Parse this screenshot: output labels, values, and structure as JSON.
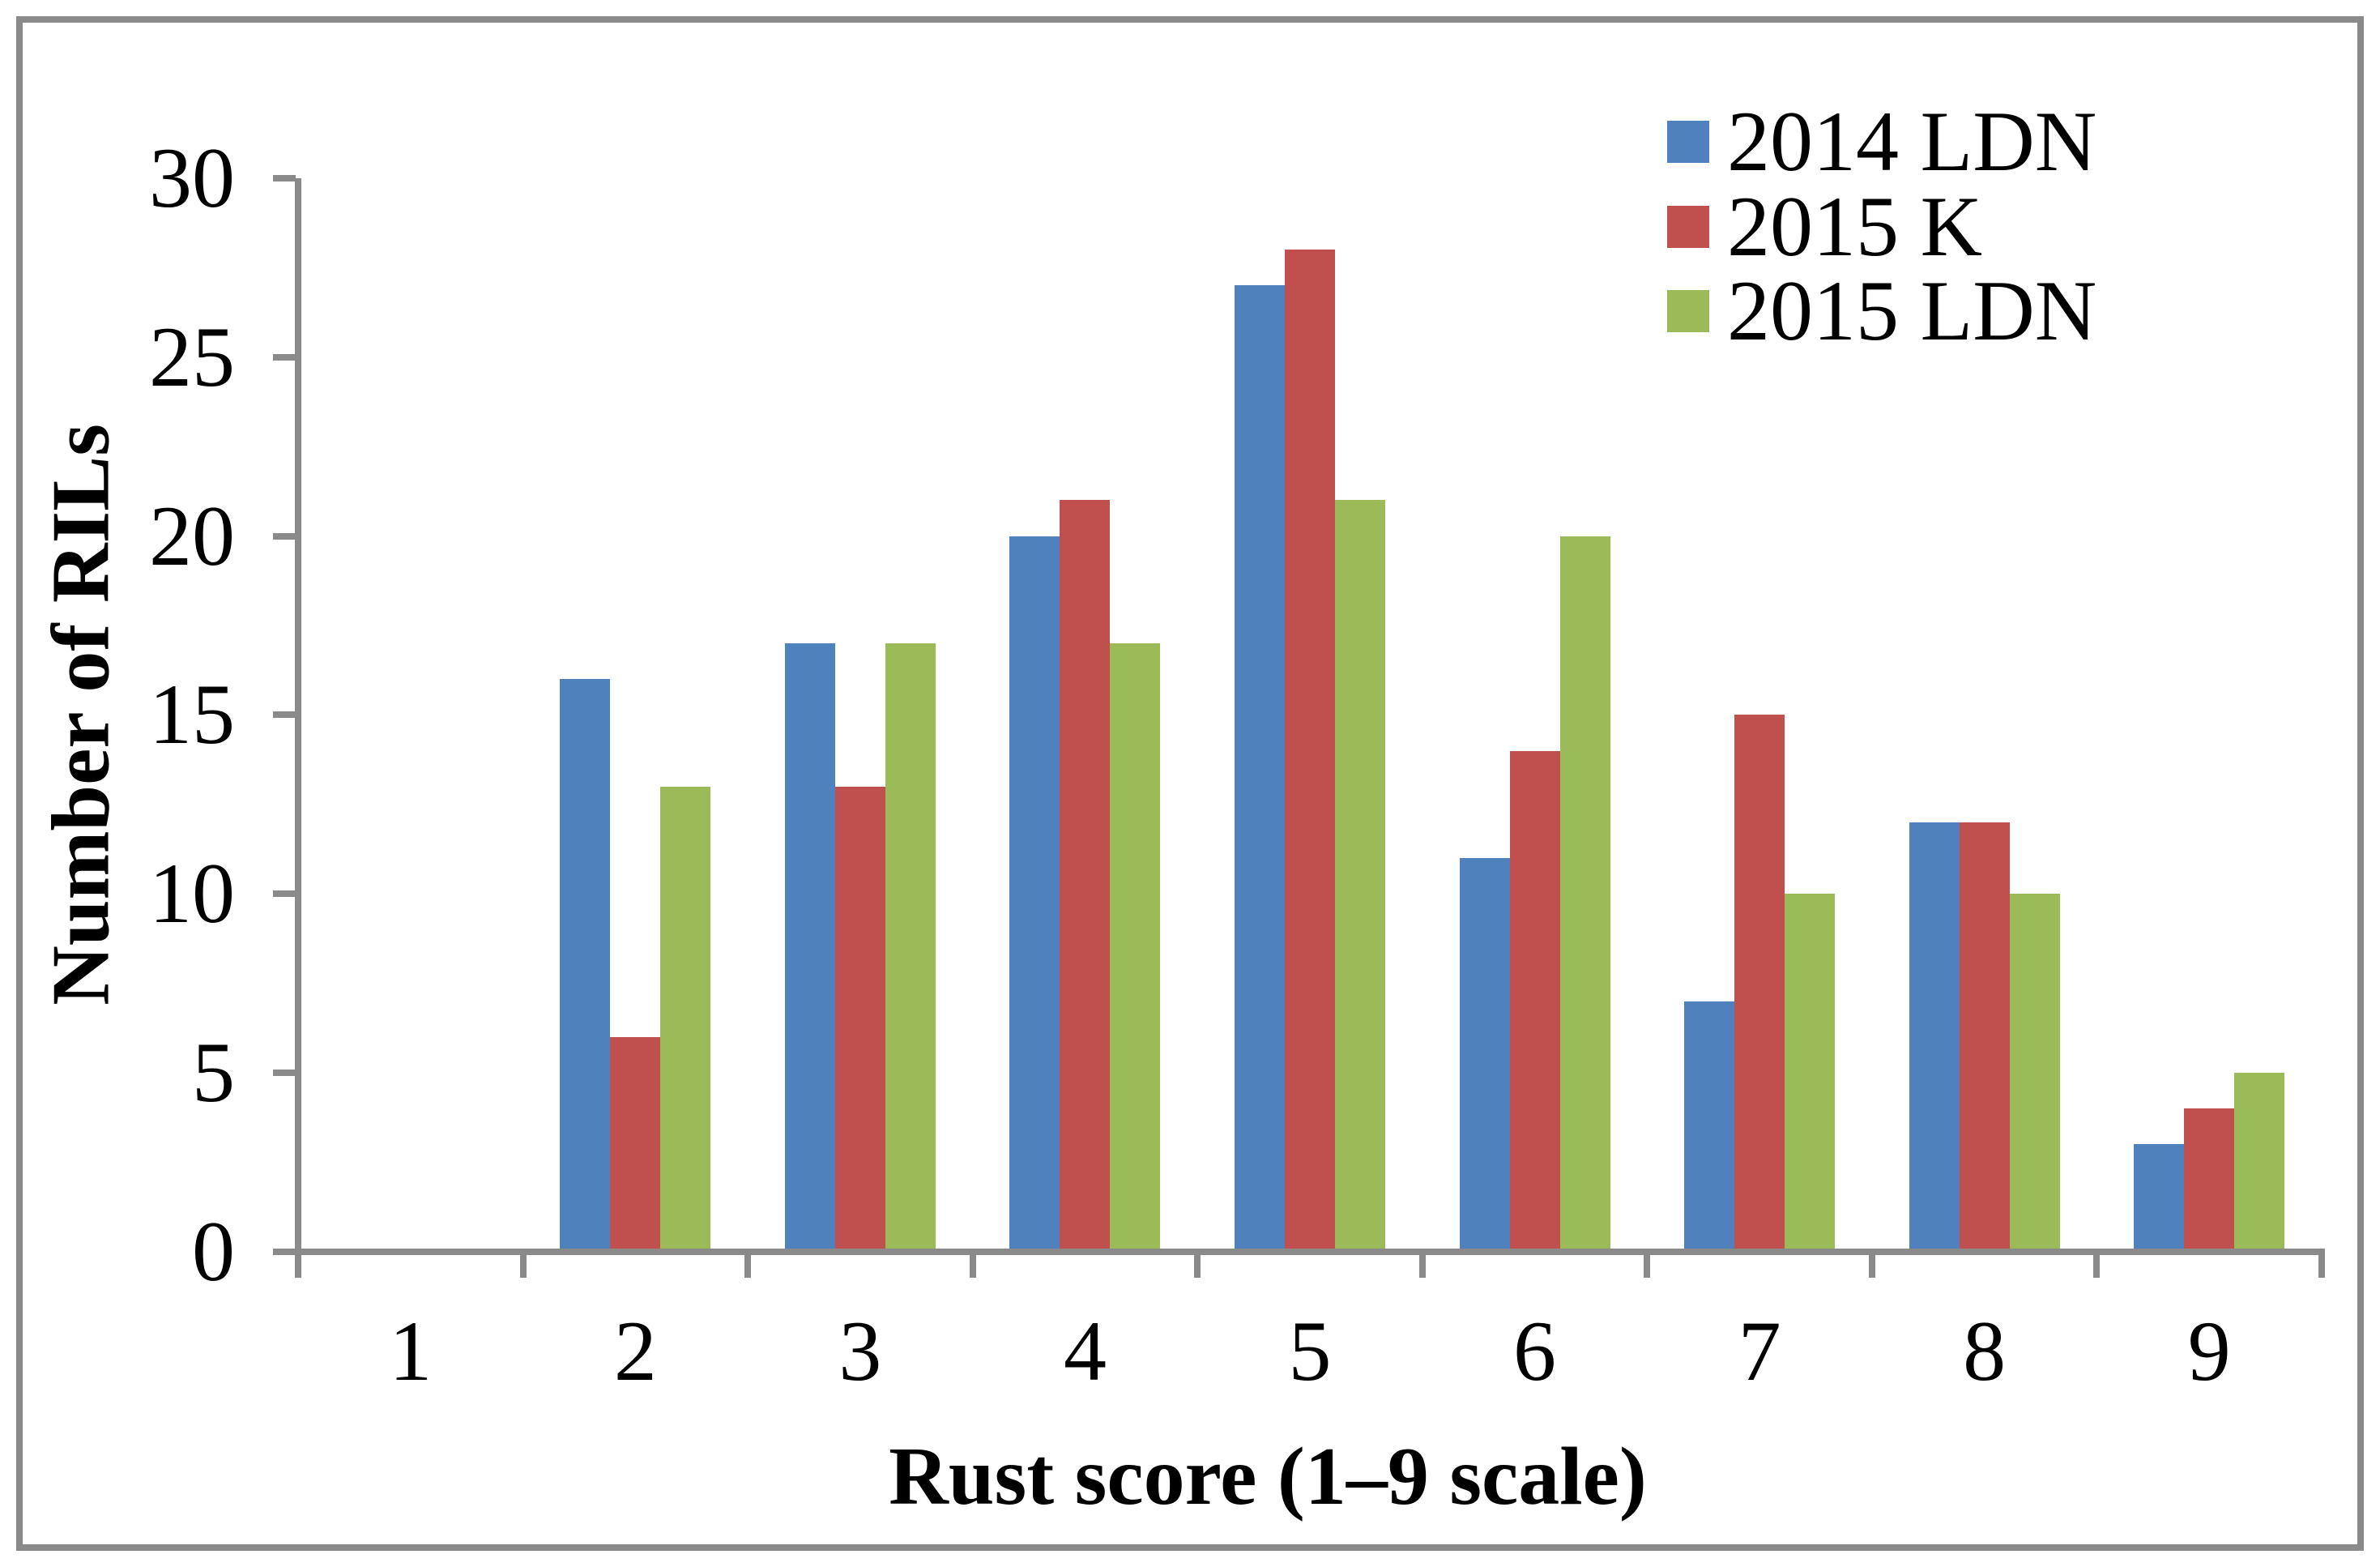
{
  "figure": {
    "background": "#FFFFFF",
    "border_color": "#8A8A8A"
  },
  "chart_data": {
    "type": "bar",
    "title": "",
    "xlabel": "Rust score (1–9 scale)",
    "ylabel": "Number of RILs",
    "categories": [
      "1",
      "2",
      "3",
      "4",
      "5",
      "6",
      "7",
      "8",
      "9"
    ],
    "series": [
      {
        "name": "2014 LDN",
        "color": "#4F81BD",
        "values": [
          0,
          16,
          17,
          20,
          27,
          11,
          7,
          12,
          3
        ]
      },
      {
        "name": "2015 K",
        "color": "#C0504D",
        "values": [
          0,
          6,
          13,
          21,
          28,
          14,
          15,
          12,
          4
        ]
      },
      {
        "name": "2015 LDN",
        "color": "#9BBB59",
        "values": [
          0,
          13,
          17,
          17,
          21,
          20,
          10,
          10,
          5
        ]
      }
    ],
    "ylim": [
      0,
      30
    ],
    "yticks": [
      0,
      5,
      10,
      15,
      20,
      25,
      30
    ],
    "grid": false,
    "legend_position": "top-right",
    "axis_color": "#8A8A8A",
    "bar_gap_width_percent": 150
  }
}
